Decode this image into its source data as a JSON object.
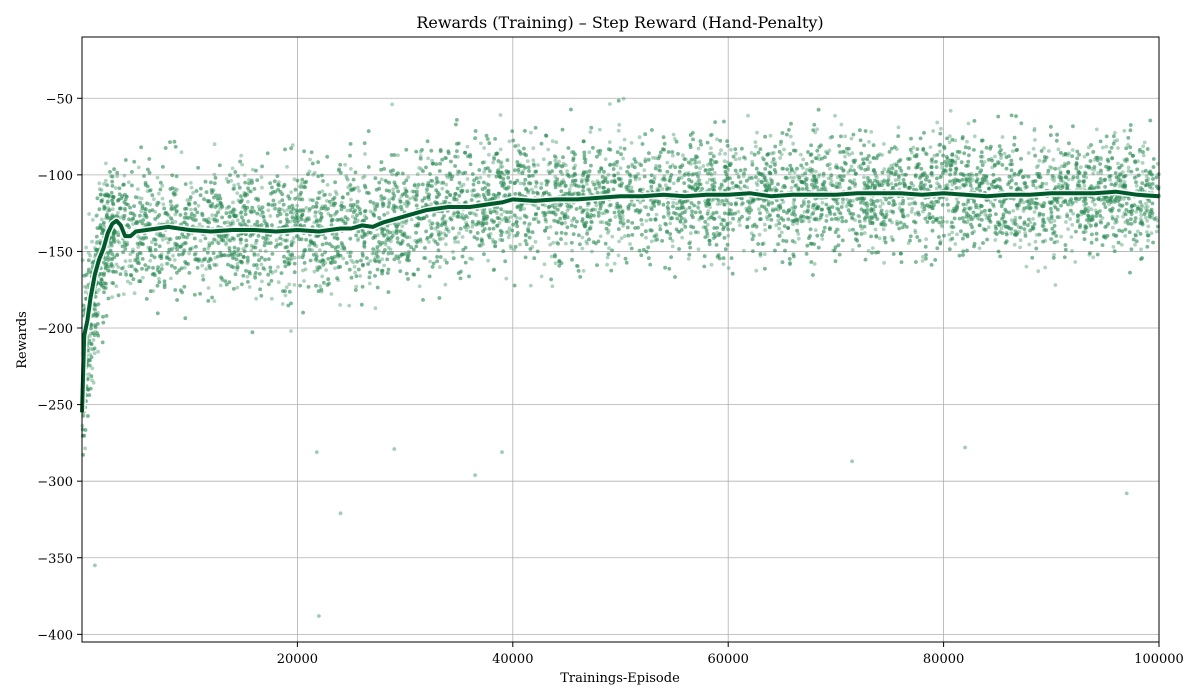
{
  "chart_data": {
    "type": "scatter",
    "title": "Rewards (Training) – Step Reward (Hand-Penalty)",
    "xlabel": "Trainings-Episode",
    "ylabel": "Rewards",
    "xlim": [
      0,
      100000
    ],
    "ylim": [
      -405,
      -10
    ],
    "xticks": [
      20000,
      40000,
      60000,
      80000,
      100000
    ],
    "xtick_labels": [
      "20000",
      "40000",
      "60000",
      "80000",
      "100000"
    ],
    "yticks": [
      -50,
      -100,
      -150,
      -200,
      -250,
      -300,
      -350,
      -400
    ],
    "ytick_labels": [
      "−50",
      "−100",
      "−150",
      "−200",
      "−250",
      "−300",
      "−350",
      "−400"
    ],
    "grid": true,
    "series": [
      {
        "kind": "scatter",
        "color": "#2e8b57",
        "envelope": {
          "x": [
            0,
            500,
            1000,
            2000,
            3000,
            5000,
            10000,
            20000,
            25000,
            30000,
            35000,
            40000,
            50000,
            60000,
            70000,
            80000,
            90000,
            100000
          ],
          "center": [
            -240,
            -205,
            -175,
            -145,
            -132,
            -136,
            -135,
            -136,
            -134,
            -127,
            -120,
            -116,
            -114,
            -112,
            -112,
            -112,
            -112,
            -112
          ],
          "spread": [
            40,
            38,
            35,
            32,
            30,
            30,
            30,
            30,
            30,
            30,
            30,
            29,
            28,
            28,
            28,
            28,
            28,
            28
          ]
        },
        "outliers": [
          {
            "x": 22000,
            "y": -388
          },
          {
            "x": 24000,
            "y": -321
          },
          {
            "x": 97000,
            "y": -308
          },
          {
            "x": 36500,
            "y": -296
          },
          {
            "x": 1200,
            "y": -355
          },
          {
            "x": 21800,
            "y": -281
          },
          {
            "x": 39000,
            "y": -281
          },
          {
            "x": 82000,
            "y": -278
          },
          {
            "x": 71500,
            "y": -287
          },
          {
            "x": 29000,
            "y": -279
          }
        ]
      },
      {
        "kind": "line",
        "color": "#005a2b",
        "x": [
          0,
          200,
          500,
          800,
          1200,
          1600,
          2000,
          2400,
          2800,
          3200,
          3600,
          4000,
          4500,
          5000,
          6000,
          7000,
          8000,
          9000,
          10000,
          12000,
          14000,
          16000,
          18000,
          20000,
          22000,
          24000,
          25000,
          26000,
          27000,
          28000,
          29000,
          30000,
          31000,
          32000,
          33000,
          34000,
          35000,
          36000,
          37000,
          38000,
          39000,
          40000,
          42000,
          44000,
          45000,
          46000,
          48000,
          50000,
          52000,
          54000,
          56000,
          58000,
          60000,
          62000,
          64000,
          66000,
          68000,
          70000,
          72000,
          74000,
          76000,
          78000,
          80000,
          82000,
          84000,
          86000,
          88000,
          90000,
          92000,
          94000,
          96000,
          98000,
          100000
        ],
        "y": [
          -255,
          -205,
          -195,
          -180,
          -165,
          -155,
          -148,
          -138,
          -132,
          -130,
          -133,
          -140,
          -140,
          -137,
          -136,
          -135,
          -134,
          -135,
          -136,
          -137,
          -136,
          -136,
          -137,
          -136,
          -137,
          -135,
          -135,
          -133,
          -134,
          -131,
          -129,
          -127,
          -125,
          -123,
          -122,
          -121,
          -121,
          -121,
          -120,
          -119,
          -118,
          -116,
          -117,
          -116,
          -116,
          -116,
          -115,
          -114,
          -114,
          -113,
          -114,
          -113,
          -113,
          -112,
          -114,
          -113,
          -113,
          -113,
          -112,
          -112,
          -112,
          -113,
          -112,
          -113,
          -114,
          -113,
          -113,
          -112,
          -112,
          -112,
          -111,
          -113,
          -114
        ]
      }
    ]
  }
}
